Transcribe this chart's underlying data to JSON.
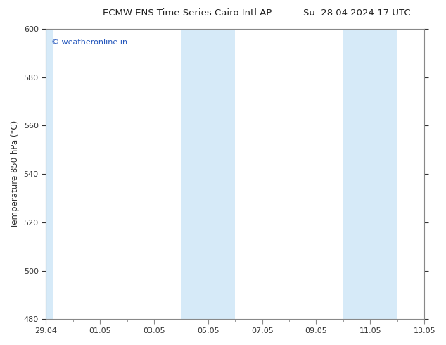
{
  "title_left": "ECMW-ENS Time Series Cairo Intl AP",
  "title_right": "Su. 28.04.2024 17 UTC",
  "ylabel": "Temperature 850 hPa (°C)",
  "ylim": [
    480,
    600
  ],
  "yticks": [
    480,
    500,
    520,
    540,
    560,
    580,
    600
  ],
  "xlim": [
    0,
    14
  ],
  "xtick_labels": [
    "29.04",
    "01.05",
    "03.05",
    "05.05",
    "07.05",
    "09.05",
    "11.05",
    "13.05"
  ],
  "xtick_positions": [
    0,
    2,
    4,
    6,
    8,
    10,
    12,
    14
  ],
  "shaded_bands": [
    {
      "x_start": 0.0,
      "x_end": 0.25
    },
    {
      "x_start": 5.0,
      "x_end": 7.0
    },
    {
      "x_start": 11.0,
      "x_end": 13.0
    }
  ],
  "band_color": "#d6eaf8",
  "watermark_text": "© weatheronline.in",
  "watermark_color": "#2255bb",
  "bg_color": "#ffffff",
  "plot_bg_color": "#ffffff",
  "tick_color": "#333333",
  "spine_color": "#888888",
  "title_fontsize": 9.5,
  "label_fontsize": 8.5,
  "tick_fontsize": 8.0,
  "watermark_fontsize": 8.0
}
